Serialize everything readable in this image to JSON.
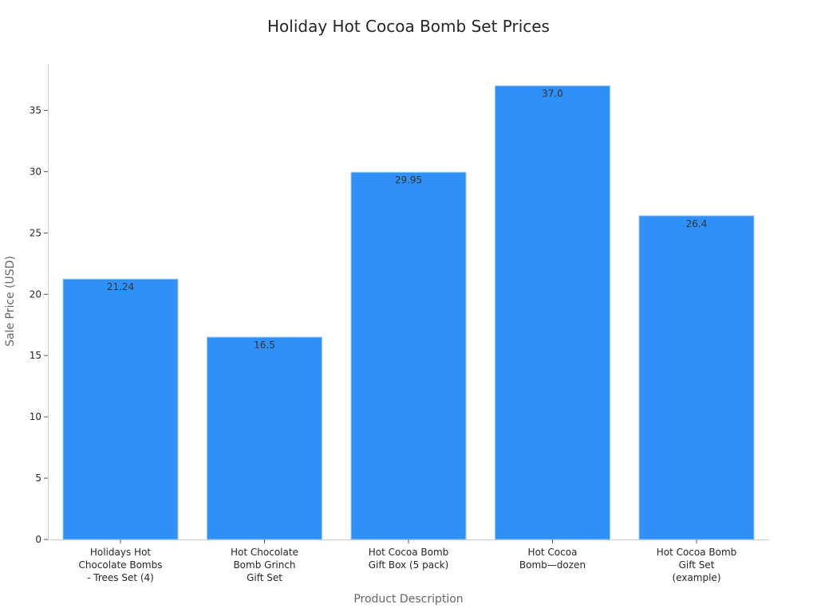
{
  "chart_data": {
    "type": "bar",
    "title": "Holiday Hot Cocoa Bomb Set Prices",
    "xlabel": "Product Description",
    "ylabel": "Sale Price (USD)",
    "categories": [
      [
        "Holidays Hot",
        "Chocolate Bombs",
        "- Trees Set (4)"
      ],
      [
        "Hot Chocolate",
        "Bomb Grinch",
        "Gift Set"
      ],
      [
        "Hot Cocoa Bomb",
        "Gift Box (5 pack)"
      ],
      [
        "Hot Cocoa",
        "Bomb—dozen"
      ],
      [
        "Hot Cocoa Bomb",
        "Gift Set",
        "(example)"
      ]
    ],
    "values": [
      21.24,
      16.5,
      29.95,
      37.0,
      26.4
    ],
    "value_labels": [
      "21.24",
      "16.5",
      "29.95",
      "37.0",
      "26.4"
    ],
    "yticks": [
      0,
      5,
      10,
      15,
      20,
      25,
      30,
      35
    ],
    "ylim": [
      0,
      38.8
    ],
    "grid": false,
    "bar_color": "#2f91f7"
  }
}
